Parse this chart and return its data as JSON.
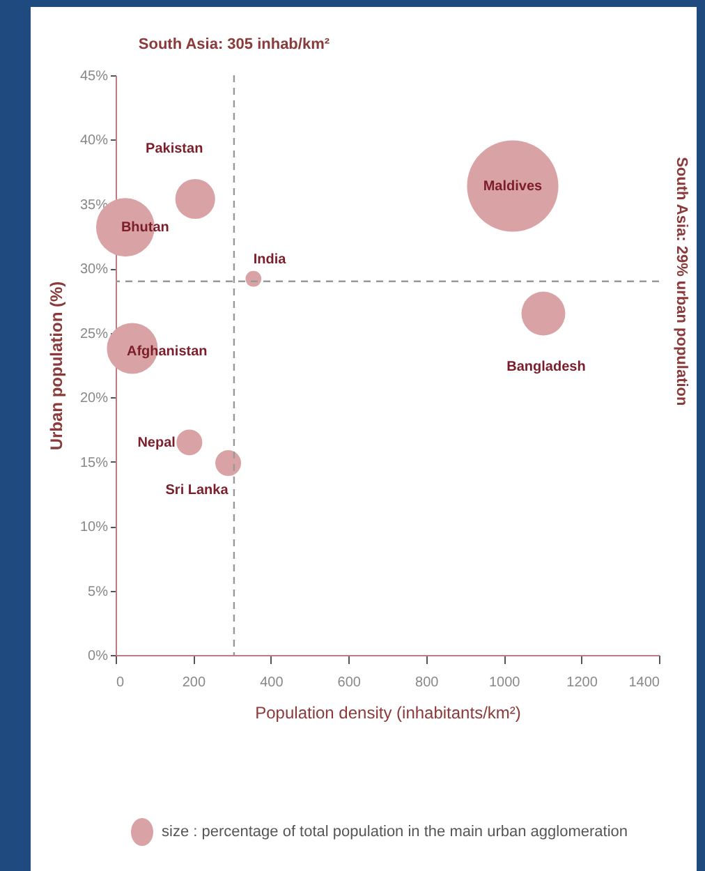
{
  "chart_data": {
    "type": "bubble",
    "xlabel": "Population density (inhabitants/km²)",
    "ylabel": "Urban population (%)",
    "xlim": [
      0,
      1400
    ],
    "xticks": [
      0,
      200,
      400,
      600,
      800,
      1000,
      1200,
      1400
    ],
    "ylim": [
      0,
      45
    ],
    "yticks": [
      {
        "value": 0,
        "label": "0%"
      },
      {
        "value": 5,
        "label": "5%"
      },
      {
        "value": 10,
        "label": "10%"
      },
      {
        "value": 15,
        "label": "15%"
      },
      {
        "value": 20,
        "label": "20%"
      },
      {
        "value": 25,
        "label": "25%"
      },
      {
        "value": 30,
        "label": "30%"
      },
      {
        "value": 35,
        "label": "35%"
      },
      {
        "value": 40,
        "label": "40%"
      },
      {
        "value": 45,
        "label": "45%"
      }
    ],
    "series": [
      {
        "name": "Bhutan",
        "color": "#d9a3a6",
        "x": [
          25
        ],
        "values": [
          33.2
        ],
        "sizes": [
          0.41
        ]
      },
      {
        "name": "Pakistan",
        "color": "#d9a3a6",
        "x": [
          205
        ],
        "values": [
          35.4
        ],
        "sizes": [
          0.19
        ]
      },
      {
        "name": "India",
        "color": "#d9a3a6",
        "x": [
          355
        ],
        "values": [
          29.2
        ],
        "sizes": [
          0.03
        ]
      },
      {
        "name": "Maldives",
        "color": "#d9a3a6",
        "x": [
          1023
        ],
        "values": [
          36.4
        ],
        "sizes": [
          1
        ]
      },
      {
        "name": "Bangladesh",
        "color": "#d9a3a6",
        "x": [
          1102
        ],
        "values": [
          26.5
        ],
        "sizes": [
          0.23
        ]
      },
      {
        "name": "Afghanistan",
        "color": "#d9a3a6",
        "x": [
          43
        ],
        "values": [
          23.8
        ],
        "sizes": [
          0.31
        ]
      },
      {
        "name": "Nepal",
        "color": "#d9a3a6",
        "x": [
          190
        ],
        "values": [
          16.5
        ],
        "sizes": [
          0.08
        ]
      },
      {
        "name": "Sri Lanka",
        "color": "#d9a3a6",
        "x": [
          290
        ],
        "values": [
          14.9
        ],
        "sizes": [
          0.08
        ]
      }
    ],
    "ref_lines": [
      {
        "axis": "x",
        "value": 305,
        "label": "South Asia: 305 inhab/km²",
        "line_style": "dashed"
      },
      {
        "axis": "y",
        "value": 29,
        "label": "South Asia: 29% urban population",
        "line_style": "dashed"
      }
    ],
    "annotations": [
      "size : percentage of total population in the main urban agglomeration"
    ]
  }
}
